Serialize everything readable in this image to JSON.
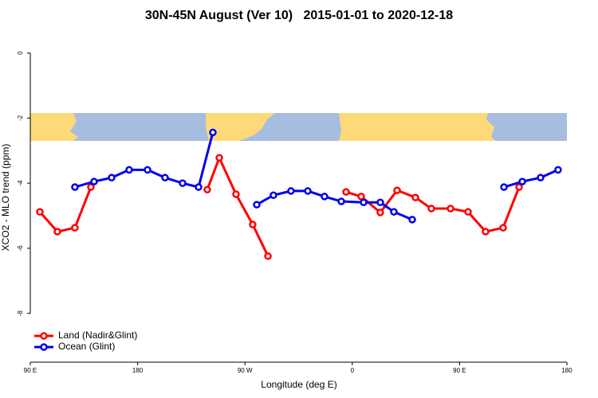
{
  "chart_data": {
    "type": "line",
    "title": "30N-45N August (Ver 10)   2015-01-01 to 2020-12-18",
    "x_label": "Longitude (deg E)",
    "y_label": "XCO2 - MLO trend (ppm)",
    "xlim": [
      90,
      540
    ],
    "xticks": [
      {
        "value": 90,
        "label": "90 E"
      },
      {
        "value": 180,
        "label": "180"
      },
      {
        "value": 270,
        "label": "90 W"
      },
      {
        "value": 360,
        "label": "0"
      },
      {
        "value": 450,
        "label": "90 E"
      },
      {
        "value": 540,
        "label": "180"
      }
    ],
    "ylim": [
      -9.5,
      0.65
    ],
    "yticks": [
      0,
      -2,
      -4,
      -6,
      -8
    ],
    "legend": "bottom-left",
    "series": [
      {
        "name": "Land (Nadir&Glint)",
        "color": "#ff0000",
        "x": [
          98.0,
          112.7,
          127.4,
          140.8,
          null,
          238.4,
          248.5,
          262.5,
          276.5,
          289.3,
          null,
          354.8,
          367.5,
          383.5,
          397.6,
          413.0,
          426.3,
          442.4,
          457.1,
          471.8,
          486.5,
          499.9
        ],
        "values": [
          -4.88,
          -5.49,
          -5.37,
          -4.12,
          null,
          -4.2,
          -3.22,
          -4.34,
          -5.27,
          -6.24,
          null,
          -4.27,
          -4.41,
          -4.9,
          -4.22,
          -4.44,
          -4.78,
          -4.78,
          -4.88,
          -5.49,
          -5.37,
          -4.12
        ]
      },
      {
        "name": "Ocean (Glint)",
        "color": "#0000ee",
        "x": [
          127.4,
          143.5,
          158.2,
          172.9,
          188.3,
          203.0,
          217.7,
          231.1,
          243.1,
          null,
          279.9,
          293.9,
          308.6,
          322.7,
          336.7,
          350.8,
          369.5,
          383.5,
          394.9,
          410.3,
          null,
          487.2,
          502.6,
          517.9,
          532.6
        ],
        "values": [
          -4.12,
          -3.95,
          -3.83,
          -3.59,
          -3.59,
          -3.83,
          -4.0,
          -4.12,
          -2.44,
          null,
          -4.66,
          -4.37,
          -4.24,
          -4.24,
          -4.41,
          -4.56,
          -4.59,
          -4.59,
          -4.88,
          -5.12,
          null,
          -4.12,
          -3.95,
          -3.83,
          -3.59
        ]
      }
    ]
  }
}
